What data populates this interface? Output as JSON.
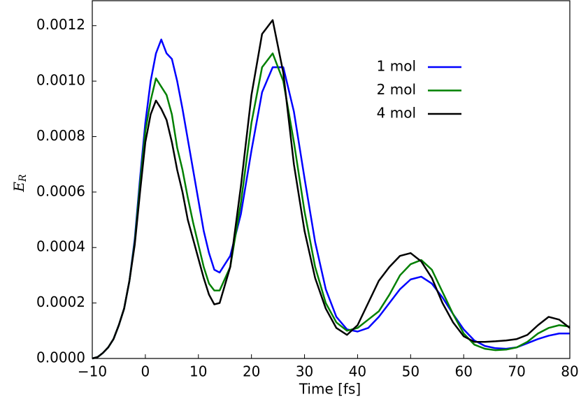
{
  "chart_data": {
    "type": "line",
    "xlabel": "Time [fs]",
    "ylabel": {
      "base": "E",
      "sub": "R"
    },
    "x": [
      -10,
      -9,
      -8,
      -7,
      -6,
      -5,
      -4,
      -3,
      -2,
      -1,
      0,
      1,
      2,
      3,
      4,
      5,
      6,
      7,
      8,
      9,
      10,
      11,
      12,
      13,
      14,
      16,
      18,
      20,
      22,
      24,
      26,
      28,
      30,
      32,
      34,
      36,
      38,
      40,
      42,
      44,
      46,
      48,
      50,
      52,
      54,
      56,
      58,
      60,
      62,
      64,
      66,
      68,
      70,
      72,
      74,
      76,
      78,
      80
    ],
    "series": [
      {
        "name": "1 mol",
        "color": "#0000ff",
        "values": [
          0,
          5e-06,
          2e-05,
          4e-05,
          7e-05,
          0.00012,
          0.00018,
          0.00028,
          0.00043,
          0.00065,
          0.00085,
          0.001,
          0.0011,
          0.00115,
          0.0011,
          0.00108,
          0.001,
          0.0009,
          0.00079,
          0.00068,
          0.00057,
          0.00046,
          0.00038,
          0.00032,
          0.00031,
          0.00037,
          0.00052,
          0.00075,
          0.00096,
          0.00105,
          0.00105,
          0.00089,
          0.00065,
          0.00042,
          0.00025,
          0.00015,
          0.000105,
          9.7e-05,
          0.00011,
          0.00015,
          0.0002,
          0.00025,
          0.000285,
          0.000295,
          0.00027,
          0.00022,
          0.00016,
          0.000105,
          6.5e-05,
          4.5e-05,
          3.7e-05,
          3.5e-05,
          4e-05,
          5.5e-05,
          7e-05,
          8.2e-05,
          9e-05,
          9e-05
        ]
      },
      {
        "name": "2 mol",
        "color": "#008000",
        "values": [
          0,
          5e-06,
          2e-05,
          4e-05,
          7e-05,
          0.00012,
          0.00018,
          0.00028,
          0.00042,
          0.00063,
          0.00082,
          0.00093,
          0.00101,
          0.00098,
          0.00095,
          0.00088,
          0.00076,
          0.00068,
          0.00058,
          0.00049,
          0.00041,
          0.00033,
          0.00027,
          0.000245,
          0.000245,
          0.00033,
          0.00056,
          0.00085,
          0.00105,
          0.0011,
          0.001,
          0.00078,
          0.00053,
          0.00033,
          0.0002,
          0.00013,
          0.0001,
          0.00011,
          0.00014,
          0.00017,
          0.00023,
          0.0003,
          0.00034,
          0.000355,
          0.00032,
          0.00024,
          0.00016,
          9e-05,
          5e-05,
          3.5e-05,
          3e-05,
          3.2e-05,
          4e-05,
          6e-05,
          9e-05,
          0.00011,
          0.00012,
          0.000115
        ]
      },
      {
        "name": "4 mol",
        "color": "#000000",
        "values": [
          0,
          5e-06,
          2e-05,
          4e-05,
          7e-05,
          0.00012,
          0.00018,
          0.00028,
          0.00041,
          0.0006,
          0.00078,
          0.00088,
          0.00093,
          0.0009,
          0.00086,
          0.00078,
          0.00068,
          0.0006,
          0.0005,
          0.00043,
          0.00036,
          0.00029,
          0.00023,
          0.000195,
          0.0002,
          0.00033,
          0.00062,
          0.00095,
          0.00117,
          0.00122,
          0.00103,
          0.0007,
          0.00046,
          0.00029,
          0.00018,
          0.00011,
          8.5e-05,
          0.00012,
          0.0002,
          0.00028,
          0.00033,
          0.00037,
          0.00038,
          0.00035,
          0.00029,
          0.0002,
          0.00013,
          8e-05,
          6e-05,
          6e-05,
          6.2e-05,
          6.5e-05,
          7e-05,
          8.5e-05,
          0.00012,
          0.00015,
          0.00014,
          0.00011
        ]
      }
    ],
    "xlim": [
      -10,
      80
    ],
    "ylim": [
      0,
      0.00129
    ],
    "xticks": [
      {
        "value": -10,
        "label": "−10"
      },
      0,
      10,
      20,
      30,
      40,
      50,
      60,
      70,
      80
    ],
    "yticks": [
      {
        "value": 0,
        "label": "0.0000"
      },
      {
        "value": 0.0002,
        "label": "0.0002"
      },
      {
        "value": 0.0004,
        "label": "0.0004"
      },
      {
        "value": 0.0006,
        "label": "0.0006"
      },
      {
        "value": 0.0008,
        "label": "0.0008"
      },
      {
        "value": 0.001,
        "label": "0.0010"
      },
      {
        "value": 0.0012,
        "label": "0.0012"
      }
    ],
    "grid": false,
    "legend": "upper right"
  }
}
